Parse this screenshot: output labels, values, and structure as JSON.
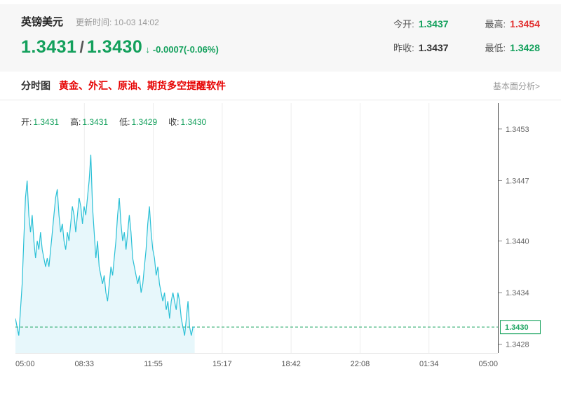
{
  "header": {
    "title": "英镑美元",
    "update_time": "更新时间: 10-03 14:02",
    "price_main": "1.3431",
    "price_sep": "/",
    "price_second": "1.3430",
    "arrow": "↓",
    "change": "-0.0007(-0.06%)",
    "stats": [
      {
        "label": "今开:",
        "value": "1.3437",
        "tone": "green"
      },
      {
        "label": "最高:",
        "value": "1.3454",
        "tone": "red"
      },
      {
        "label": "昨收:",
        "value": "1.3437",
        "tone": "dark"
      },
      {
        "label": "最低:",
        "value": "1.3428",
        "tone": "green"
      }
    ]
  },
  "tabbar": {
    "tab": "分时图",
    "promo": "黄金、外汇、原油、期货多空提醒软件",
    "right_link": "基本面分析>"
  },
  "chart": {
    "legend": [
      {
        "label": "开:",
        "value": "1.3431"
      },
      {
        "label": "高:",
        "value": "1.3431"
      },
      {
        "label": "低:",
        "value": "1.3429"
      },
      {
        "label": "收:",
        "value": "1.3430"
      }
    ]
  },
  "colors": {
    "green": "#13a05c",
    "red": "#e23333",
    "promo_red": "#e60000",
    "header_bg": "#f7f7f7",
    "line": "#2ac0d6",
    "area_fill": "#e7f7fb",
    "dashed_current": "#1ea562"
  },
  "chart_data": {
    "type": "area",
    "title": "英镑美元 分时图",
    "x_ticks": [
      "05:00",
      "08:33",
      "11:55",
      "15:17",
      "18:42",
      "22:08",
      "01:34",
      "05:00"
    ],
    "y_ticks": [
      1.3453,
      1.3447,
      1.344,
      1.3434,
      1.3428
    ],
    "y_range": [
      1.3427,
      1.3456
    ],
    "axis_start_minute": 300,
    "total_minutes": 1440,
    "data_start_minute": 300,
    "step_minutes": 5,
    "current_price": 1.343,
    "open": 1.3431,
    "high": 1.3431,
    "low": 1.3429,
    "close": 1.343,
    "grid": "vertical-only",
    "legend_position": "top-left-inside",
    "values": [
      1.3431,
      1.343,
      1.3429,
      1.3432,
      1.3435,
      1.344,
      1.3445,
      1.3447,
      1.3443,
      1.3441,
      1.3443,
      1.344,
      1.3438,
      1.344,
      1.3439,
      1.3441,
      1.3439,
      1.3438,
      1.3437,
      1.3438,
      1.3437,
      1.3439,
      1.3441,
      1.3443,
      1.3445,
      1.3446,
      1.3443,
      1.3441,
      1.3442,
      1.344,
      1.3439,
      1.3441,
      1.344,
      1.3442,
      1.3444,
      1.3443,
      1.3441,
      1.3443,
      1.3445,
      1.3444,
      1.3442,
      1.3444,
      1.3443,
      1.3445,
      1.3447,
      1.345,
      1.3444,
      1.3441,
      1.3438,
      1.344,
      1.3437,
      1.3436,
      1.3435,
      1.3436,
      1.3434,
      1.3433,
      1.3435,
      1.3437,
      1.3436,
      1.3438,
      1.344,
      1.3443,
      1.3445,
      1.3442,
      1.344,
      1.3441,
      1.3439,
      1.3441,
      1.3443,
      1.3441,
      1.3438,
      1.3437,
      1.3436,
      1.3435,
      1.3436,
      1.3434,
      1.3435,
      1.3437,
      1.3439,
      1.3442,
      1.3444,
      1.3441,
      1.3439,
      1.3438,
      1.3436,
      1.3437,
      1.3435,
      1.3434,
      1.3433,
      1.3434,
      1.3432,
      1.3433,
      1.3431,
      1.3433,
      1.3434,
      1.3433,
      1.3432,
      1.3434,
      1.3433,
      1.3431,
      1.343,
      1.3429,
      1.3431,
      1.3433,
      1.343,
      1.3429,
      1.343,
      1.343
    ]
  }
}
